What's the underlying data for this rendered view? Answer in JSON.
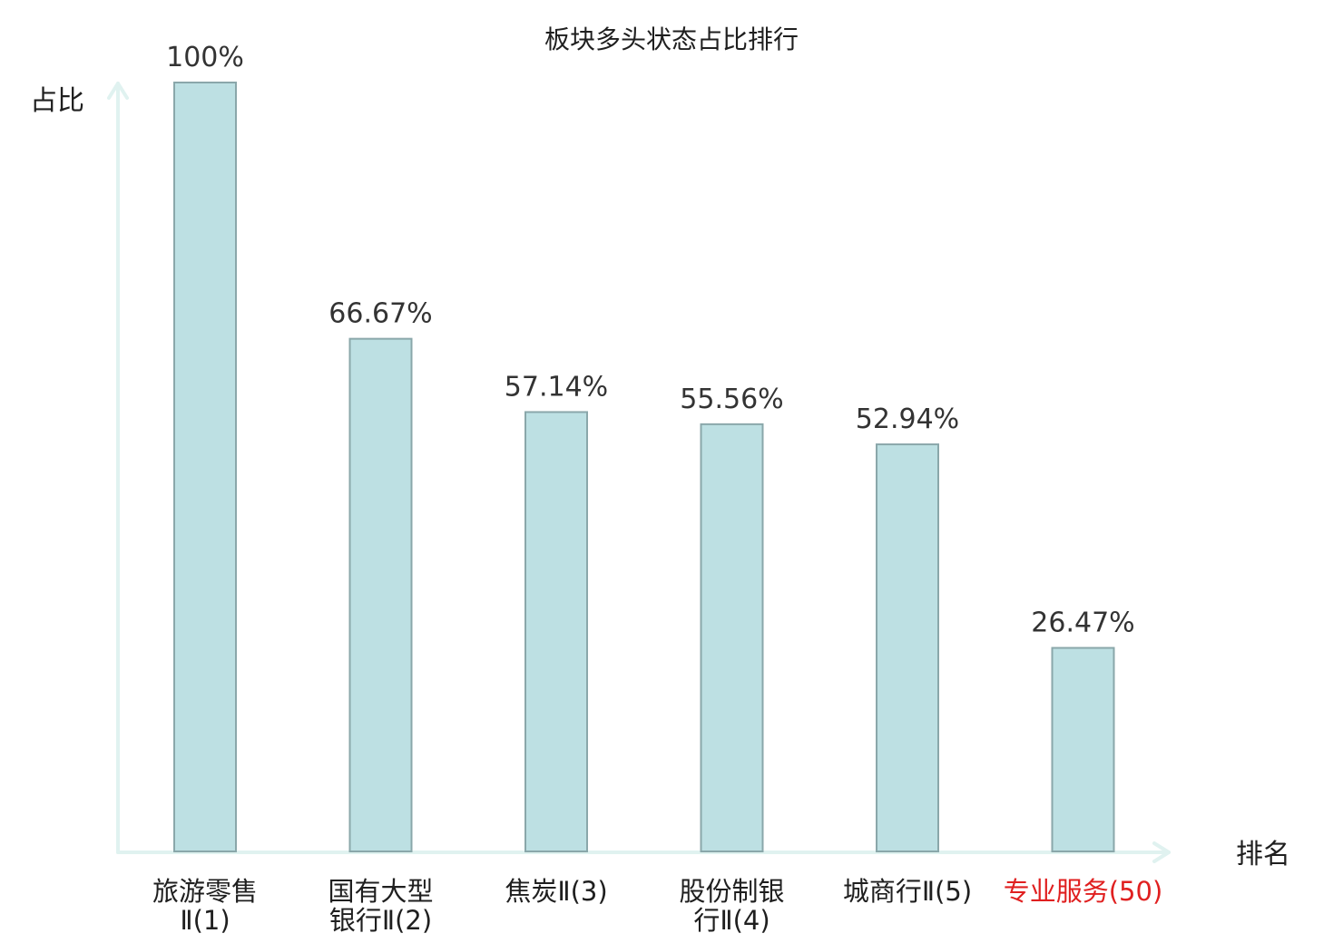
{
  "chart_data": {
    "type": "bar",
    "title": "板块多头状态占比排行",
    "ylabel": "占比",
    "xlabel": "排名",
    "ylim": [
      0,
      100
    ],
    "grid": false,
    "categories": [
      [
        "旅游零售",
        "Ⅱ(1)"
      ],
      [
        "国有大型",
        "银行Ⅱ(2)"
      ],
      [
        "焦炭Ⅱ(3)"
      ],
      [
        "股份制银",
        "行Ⅱ(4)"
      ],
      [
        "城商行Ⅱ(5)"
      ],
      [
        "专业服务(50)"
      ]
    ],
    "values": [
      100,
      66.67,
      57.14,
      55.56,
      52.94,
      26.47
    ],
    "value_labels": [
      "100%",
      "66.67%",
      "57.14%",
      "55.56%",
      "52.94%",
      "26.47%"
    ],
    "highlight_index": 5,
    "colors": {
      "bar_fill": "#bde0e3",
      "bar_stroke": "#8aa7aa",
      "axis": "#e0f2f0",
      "highlight_label": "#e02020"
    }
  }
}
